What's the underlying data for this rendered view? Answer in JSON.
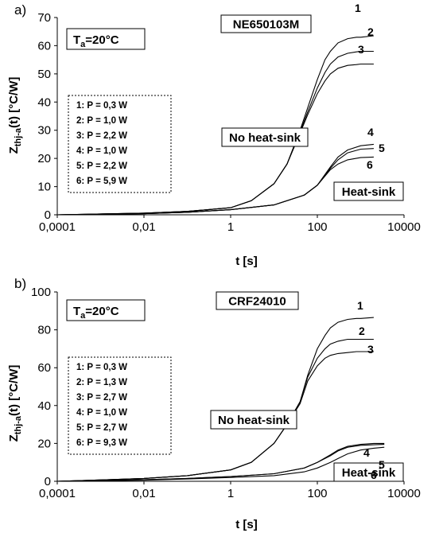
{
  "figure": {
    "panels": [
      {
        "panel_label": "a)",
        "device": "NE650103M",
        "ambient": "Tₐ=20°C",
        "ambient_main": "T",
        "ambient_sub": "a",
        "ambient_rest": "=20°C",
        "legend": [
          "1: P = 0,3 W",
          "2: P = 1,0 W",
          "3: P = 2,2 W",
          "4: P = 1,0 W",
          "5: P = 2,2 W",
          "6: P = 5,9 W"
        ],
        "annotation_no_hs": "No heat-sink",
        "annotation_hs": "Heat-sink"
      },
      {
        "panel_label": "b)",
        "device": "CRF24010",
        "ambient": "Tₐ=20°C",
        "ambient_main": "T",
        "ambient_sub": "a",
        "ambient_rest": "=20°C",
        "legend": [
          "1: P = 0,3 W",
          "2: P = 1,3 W",
          "3: P = 2,7 W",
          "4: P = 1,0 W",
          "5: P = 2,7 W",
          "6: P = 9,3 W"
        ],
        "annotation_no_hs": "No heat-sink",
        "annotation_hs": "Heat-sink"
      }
    ]
  },
  "chart_data": [
    {
      "type": "line",
      "title": "NE650103M",
      "xlabel": "t [s]",
      "ylabel_main": "Z",
      "ylabel_sub": "thj-a",
      "ylabel_rest": "(t) [°C/W]",
      "xscale": "log",
      "xlim": [
        0.0001,
        10000
      ],
      "ylim": [
        0,
        70
      ],
      "xticks": [
        0.0001,
        0.01,
        1,
        100,
        10000
      ],
      "xtick_labels": [
        "0,0001",
        "0,01",
        "1",
        "100",
        "10000"
      ],
      "yticks": [
        0,
        10,
        20,
        30,
        40,
        50,
        60,
        70
      ],
      "ytick_labels": [
        "0",
        "10",
        "20",
        "30",
        "40",
        "50",
        "60",
        "70"
      ],
      "grid": false,
      "series": [
        {
          "name": "1",
          "x": [
            0.0001,
            0.01,
            0.1,
            1,
            3,
            10,
            20,
            40,
            60,
            100,
            150,
            200,
            300,
            500,
            800,
            1000,
            2000
          ],
          "y": [
            0,
            0.6,
            1.2,
            2.5,
            5,
            11,
            18,
            30,
            38,
            48,
            55,
            58,
            61,
            62.5,
            63,
            63,
            63.5
          ]
        },
        {
          "name": "2",
          "x": [
            0.0001,
            0.01,
            0.1,
            1,
            3,
            10,
            20,
            40,
            60,
            100,
            150,
            200,
            300,
            500,
            800,
            1000,
            2000
          ],
          "y": [
            0,
            0.6,
            1.2,
            2.5,
            5,
            11,
            18,
            29.5,
            36.5,
            45,
            50.5,
            53.5,
            56,
            57.3,
            57.8,
            58,
            58
          ]
        },
        {
          "name": "3",
          "x": [
            0.0001,
            0.01,
            0.1,
            1,
            3,
            10,
            20,
            40,
            60,
            100,
            150,
            200,
            300,
            500,
            800,
            1000,
            2000
          ],
          "y": [
            0,
            0.6,
            1.2,
            2.5,
            5,
            11,
            18,
            29,
            35.5,
            43,
            47.5,
            50,
            52,
            53,
            53.3,
            53.5,
            53.5
          ]
        },
        {
          "name": "4",
          "x": [
            0.0001,
            0.01,
            0.1,
            1,
            10,
            50,
            100,
            200,
            300,
            500,
            1000,
            2000
          ],
          "y": [
            0,
            0.4,
            0.9,
            1.8,
            3.5,
            7,
            10.5,
            17,
            20.5,
            23,
            24.5,
            25
          ]
        },
        {
          "name": "5",
          "x": [
            0.0001,
            0.01,
            0.1,
            1,
            10,
            50,
            100,
            200,
            300,
            500,
            1000,
            2000
          ],
          "y": [
            0,
            0.4,
            0.9,
            1.8,
            3.5,
            7,
            10.5,
            16.5,
            19.5,
            22,
            23.3,
            23.5
          ]
        },
        {
          "name": "6",
          "x": [
            0.0001,
            0.01,
            0.1,
            1,
            10,
            50,
            100,
            200,
            300,
            500,
            1000,
            2000
          ],
          "y": [
            0,
            0.4,
            0.9,
            1.8,
            3.5,
            7,
            10.5,
            16,
            18,
            19.5,
            20.3,
            20.5
          ]
        }
      ]
    },
    {
      "type": "line",
      "title": "CRF24010",
      "xlabel": "t [s]",
      "ylabel_main": "Z",
      "ylabel_sub": "thj-a",
      "ylabel_rest": "(t) [°C/W]",
      "xscale": "log",
      "xlim": [
        0.0001,
        10000
      ],
      "ylim": [
        0,
        100
      ],
      "xticks": [
        0.0001,
        0.01,
        1,
        100,
        10000
      ],
      "xtick_labels": [
        "0,0001",
        "0,01",
        "1",
        "100",
        "10000"
      ],
      "yticks": [
        0,
        20,
        40,
        60,
        80,
        100
      ],
      "ytick_labels": [
        "0",
        "20",
        "40",
        "60",
        "80",
        "100"
      ],
      "grid": false,
      "series": [
        {
          "name": "1",
          "x": [
            0.0001,
            0.001,
            0.01,
            0.1,
            1,
            3,
            10,
            20,
            40,
            60,
            100,
            150,
            200,
            300,
            500,
            800,
            1000,
            2000
          ],
          "y": [
            0,
            0.7,
            1.5,
            3,
            6,
            10,
            20,
            30,
            42,
            56,
            70,
            77,
            81,
            84,
            85.5,
            86,
            86,
            86.5
          ]
        },
        {
          "name": "2",
          "x": [
            0.0001,
            0.001,
            0.01,
            0.1,
            1,
            3,
            10,
            20,
            40,
            60,
            100,
            150,
            200,
            300,
            500,
            800,
            1000,
            2000
          ],
          "y": [
            0,
            0.7,
            1.5,
            3,
            6,
            10,
            20,
            30,
            42,
            55,
            65,
            70,
            72.5,
            74,
            75,
            75,
            75,
            75
          ]
        },
        {
          "name": "3",
          "x": [
            0.0001,
            0.001,
            0.01,
            0.1,
            1,
            3,
            10,
            20,
            40,
            60,
            100,
            150,
            200,
            300,
            500,
            800,
            1000,
            2000
          ],
          "y": [
            0,
            0.7,
            1.5,
            3,
            6,
            10,
            20,
            30,
            41,
            53,
            61,
            65,
            66.5,
            67.5,
            68,
            68.5,
            68.5,
            68.5
          ]
        },
        {
          "name": "4",
          "x": [
            0.0001,
            0.01,
            0.1,
            1,
            10,
            50,
            100,
            200,
            300,
            500,
            1000,
            2000,
            3500
          ],
          "y": [
            0,
            0.8,
            1.5,
            2.5,
            4,
            7,
            10,
            14,
            16.5,
            18.5,
            19.5,
            20,
            20
          ]
        },
        {
          "name": "5",
          "x": [
            0.0001,
            0.01,
            0.1,
            1,
            10,
            50,
            100,
            200,
            300,
            500,
            1000,
            2000,
            3500
          ],
          "y": [
            0,
            0.8,
            1.5,
            2.5,
            4,
            7,
            10,
            13.5,
            16,
            18,
            19,
            19.3,
            19.5
          ]
        },
        {
          "name": "6",
          "x": [
            0.0001,
            0.01,
            0.1,
            1,
            10,
            50,
            100,
            200,
            300,
            500,
            1000,
            2000,
            3500
          ],
          "y": [
            0,
            0.6,
            1.2,
            2,
            3,
            5,
            7,
            10,
            12,
            14.5,
            16.5,
            17.5,
            18
          ]
        }
      ]
    }
  ]
}
